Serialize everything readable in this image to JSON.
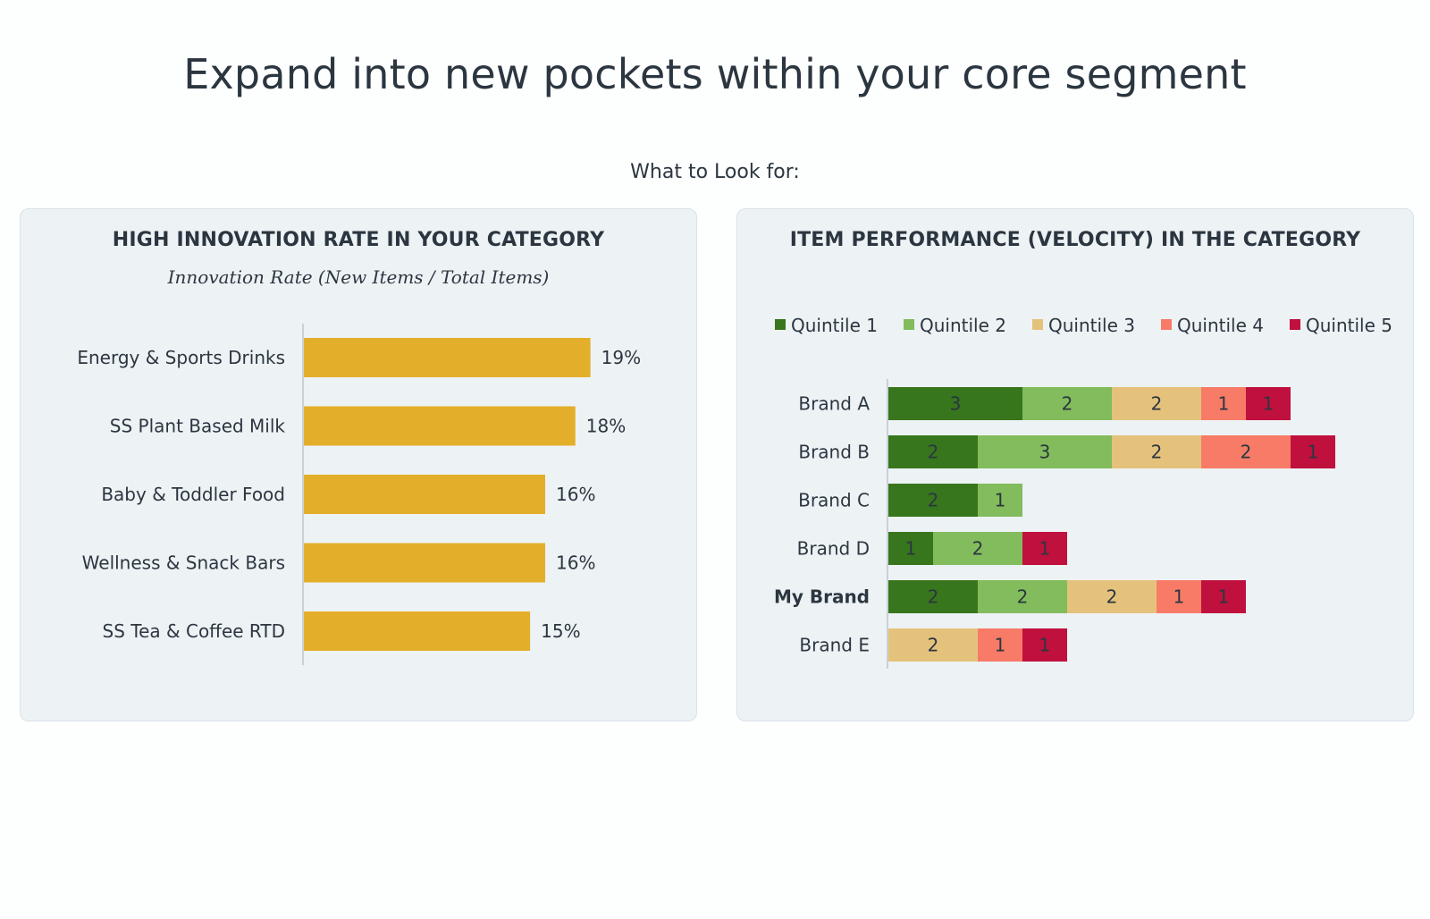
{
  "header": {
    "title": "Expand into new pockets within your core segment",
    "subtitle": "What to Look for:"
  },
  "chart_data": [
    {
      "type": "bar",
      "orientation": "horizontal",
      "title": "HIGH INNOVATION RATE IN YOUR CATEGORY",
      "subtitle": "Innovation Rate (New Items / Total Items)",
      "categories": [
        "Energy & Sports Drinks",
        "SS Plant Based Milk",
        "Baby & Toddler Food",
        "Wellness & Snack Bars",
        "SS Tea & Coffee RTD"
      ],
      "values": [
        19,
        18,
        16,
        16,
        15
      ],
      "value_labels": [
        "19%",
        "18%",
        "16%",
        "16%",
        "15%"
      ],
      "unit": "%",
      "xlim": [
        0,
        24
      ],
      "bar_color": "#e3af2a",
      "grid": false
    },
    {
      "type": "bar",
      "orientation": "horizontal",
      "stacked": true,
      "title": "ITEM PERFORMANCE (VELOCITY) IN THE CATEGORY",
      "categories": [
        "Brand A",
        "Brand B",
        "Brand C",
        "Brand D",
        "My Brand",
        "Brand E"
      ],
      "highlight_category": "My Brand",
      "series": [
        {
          "name": "Quintile 1",
          "color": "#38761d",
          "values": [
            3,
            2,
            2,
            1,
            2,
            0
          ]
        },
        {
          "name": "Quintile 2",
          "color": "#82bc5c",
          "values": [
            2,
            3,
            1,
            2,
            2,
            0
          ]
        },
        {
          "name": "Quintile 3",
          "color": "#e5c27c",
          "values": [
            2,
            2,
            0,
            0,
            2,
            2
          ]
        },
        {
          "name": "Quintile 4",
          "color": "#f77b67",
          "values": [
            1,
            2,
            0,
            0,
            1,
            1
          ]
        },
        {
          "name": "Quintile 5",
          "color": "#c0103e",
          "values": [
            1,
            1,
            0,
            1,
            1,
            1
          ]
        }
      ],
      "xlim": [
        0,
        10
      ],
      "legend_position": "top",
      "grid": false
    }
  ]
}
